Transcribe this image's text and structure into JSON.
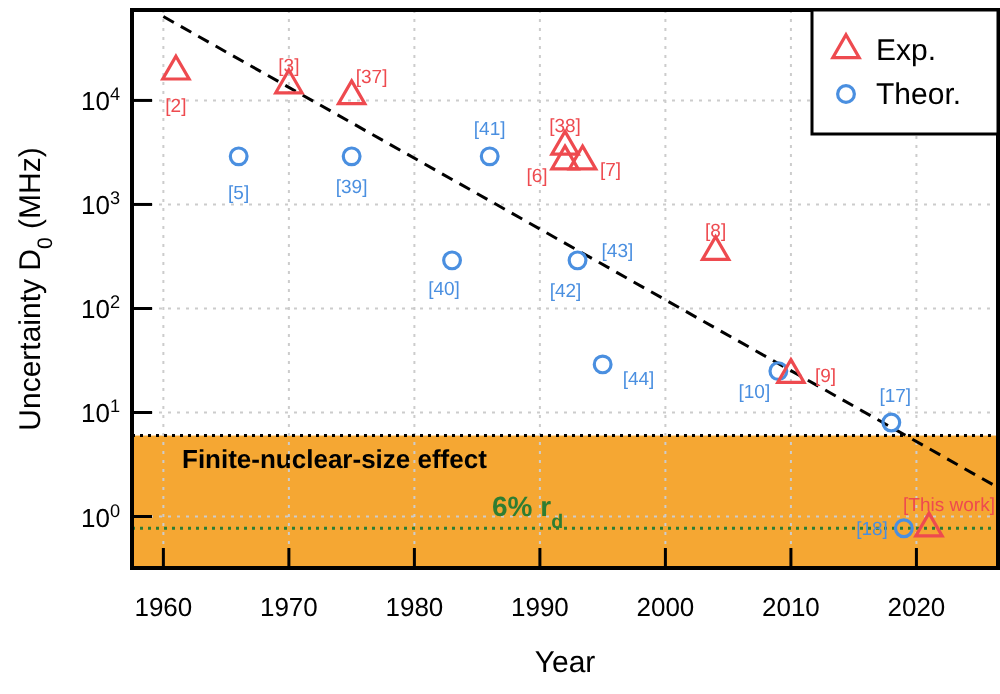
{
  "chart_data": {
    "type": "scatter",
    "xlabel": "Year",
    "ylabel": "Uncertainty D$_{0}$ (MHz)",
    "xlim": [
      1957.5,
      2026.5
    ],
    "xticks": [
      1960,
      1970,
      1980,
      1990,
      2000,
      2010,
      2020
    ],
    "ylim": [
      0.32,
      74000
    ],
    "yticks": [
      {
        "value": 1,
        "label": "10$^{0}$"
      },
      {
        "value": 10,
        "label": "10$^{1}$"
      },
      {
        "value": 100,
        "label": "10$^{2}$"
      },
      {
        "value": 1000,
        "label": "10$^{3}$"
      },
      {
        "value": 10000,
        "label": "10$^{4}$"
      }
    ],
    "log": "y",
    "grid": true,
    "legend": "top right",
    "series": [
      {
        "name": "Exp.",
        "color": "#ee4a4f",
        "marker": "triangle",
        "x": [
          1961,
          1970,
          1975,
          1992,
          1992,
          1993.4,
          2004,
          2010,
          2021
        ],
        "values": [
          19000,
          14000,
          11000,
          3600,
          2600,
          2600,
          350,
          23,
          0.77
        ]
      },
      {
        "name": "Theor.",
        "color": "#4a8fe0",
        "marker": "circle",
        "x": [
          1966,
          1975,
          1986,
          1983,
          1993,
          1995,
          2009,
          2018,
          2019
        ],
        "values": [
          2900,
          2900,
          2900,
          290,
          290,
          29,
          25,
          8,
          0.77
        ]
      },
      {
        "type": "line",
        "color": "#000000",
        "marker": "none",
        "line_style": "dashed",
        "x": [
          1960,
          2026.5
        ],
        "values": [
          64000,
          1.9
        ]
      }
    ],
    "bands": [
      {
        "axis": "y",
        "from": 0.32,
        "to": 6,
        "label": "Finite-nuclear-size effect",
        "color": "#f5a733"
      }
    ],
    "ref_lines": [
      {
        "axis": "y",
        "value": 6,
        "color": "#000000",
        "line_style": "dotted"
      },
      {
        "axis": "y",
        "value": 0.77,
        "label": "6% r$_{d}$",
        "color": "#2e7d32",
        "line_style": "dotted"
      }
    ],
    "annotations": [
      {
        "text": "[2]",
        "x": 1961,
        "y": 19000
      },
      {
        "text": "[3]",
        "x": 1970,
        "y": 14000
      },
      {
        "text": "[37]",
        "x": 1975,
        "y": 11000
      },
      {
        "text": "[38]",
        "x": 1992,
        "y": 3600
      },
      {
        "text": "[6]",
        "x": 1992,
        "y": 2600
      },
      {
        "text": "[7]",
        "x": 1993.4,
        "y": 2600
      },
      {
        "text": "[8]",
        "x": 2004,
        "y": 350
      },
      {
        "text": "[9]",
        "x": 2010,
        "y": 23
      },
      {
        "text": "[This work]",
        "x": 2021,
        "y": 0.77
      },
      {
        "text": "[5]",
        "x": 1966,
        "y": 2900
      },
      {
        "text": "[39]",
        "x": 1975,
        "y": 2900
      },
      {
        "text": "[41]",
        "x": 1986,
        "y": 2900
      },
      {
        "text": "[40]",
        "x": 1983,
        "y": 290
      },
      {
        "text": "[43]",
        "x": 1993,
        "y": 290
      },
      {
        "text": "[42]",
        "x": 1993,
        "y": 290
      },
      {
        "text": "[44]",
        "x": 1995,
        "y": 29
      },
      {
        "text": "[10]",
        "x": 2009,
        "y": 25
      },
      {
        "text": "[17]",
        "x": 2018,
        "y": 8
      },
      {
        "text": "[18]",
        "x": 2019,
        "y": 0.77
      }
    ]
  }
}
